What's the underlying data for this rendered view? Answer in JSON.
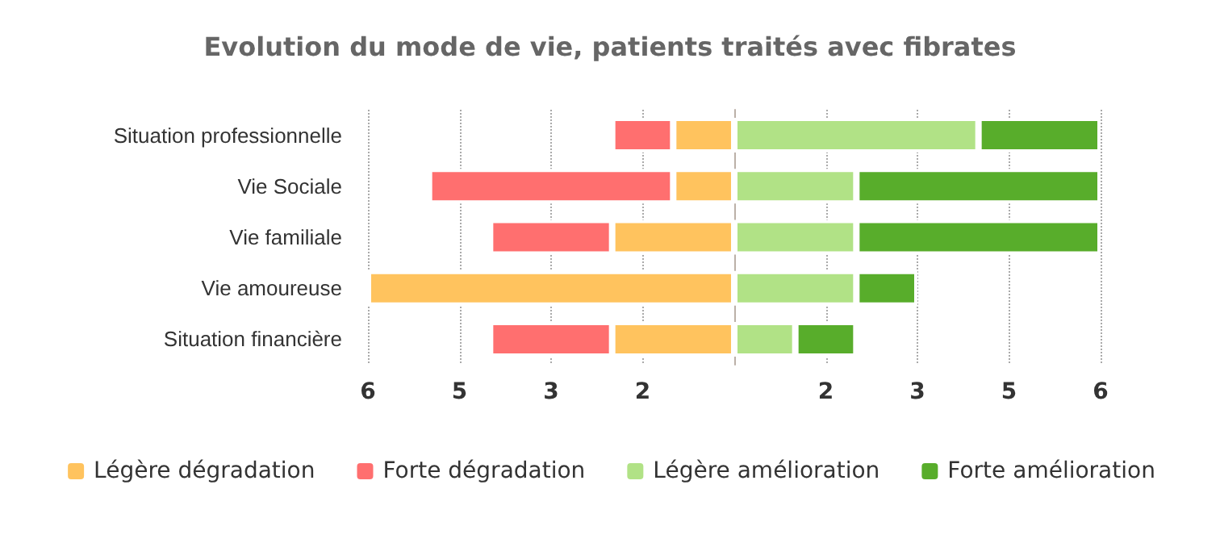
{
  "chart_data": {
    "type": "bar",
    "title": "Evolution du mode de vie, patients traités avec fibrates",
    "orientation": "horizontal",
    "stacked": true,
    "categories": [
      "Situation professionnelle",
      "Vie Sociale",
      "Vie familiale",
      "Vie amoureuse",
      "Situation financière"
    ],
    "series": [
      {
        "name": "Légère dégradation",
        "color": "#ffc35e",
        "values": [
          -1,
          -1,
          -2,
          -6,
          -2
        ]
      },
      {
        "name": "Forte dégradation",
        "color": "#ff6f6f",
        "values": [
          -1,
          -4,
          -2,
          0,
          -2
        ]
      },
      {
        "name": "Légère amélioration",
        "color": "#b1e286",
        "values": [
          4,
          2,
          2,
          2,
          1
        ]
      },
      {
        "name": "Forte amélioration",
        "color": "#58ad2b",
        "values": [
          2,
          4,
          4,
          1,
          1
        ]
      }
    ],
    "xlim": [
      -6,
      6
    ],
    "xticks": [
      {
        "value": -6,
        "label": "6"
      },
      {
        "value": -4.5,
        "label": "5"
      },
      {
        "value": -3,
        "label": "3"
      },
      {
        "value": -1.5,
        "label": "2"
      },
      {
        "value": 0,
        "label": null
      },
      {
        "value": 1.5,
        "label": "2"
      },
      {
        "value": 3,
        "label": "3"
      },
      {
        "value": 4.5,
        "label": "5"
      },
      {
        "value": 6,
        "label": "6"
      }
    ],
    "grid": "x",
    "legend": "bottom"
  }
}
